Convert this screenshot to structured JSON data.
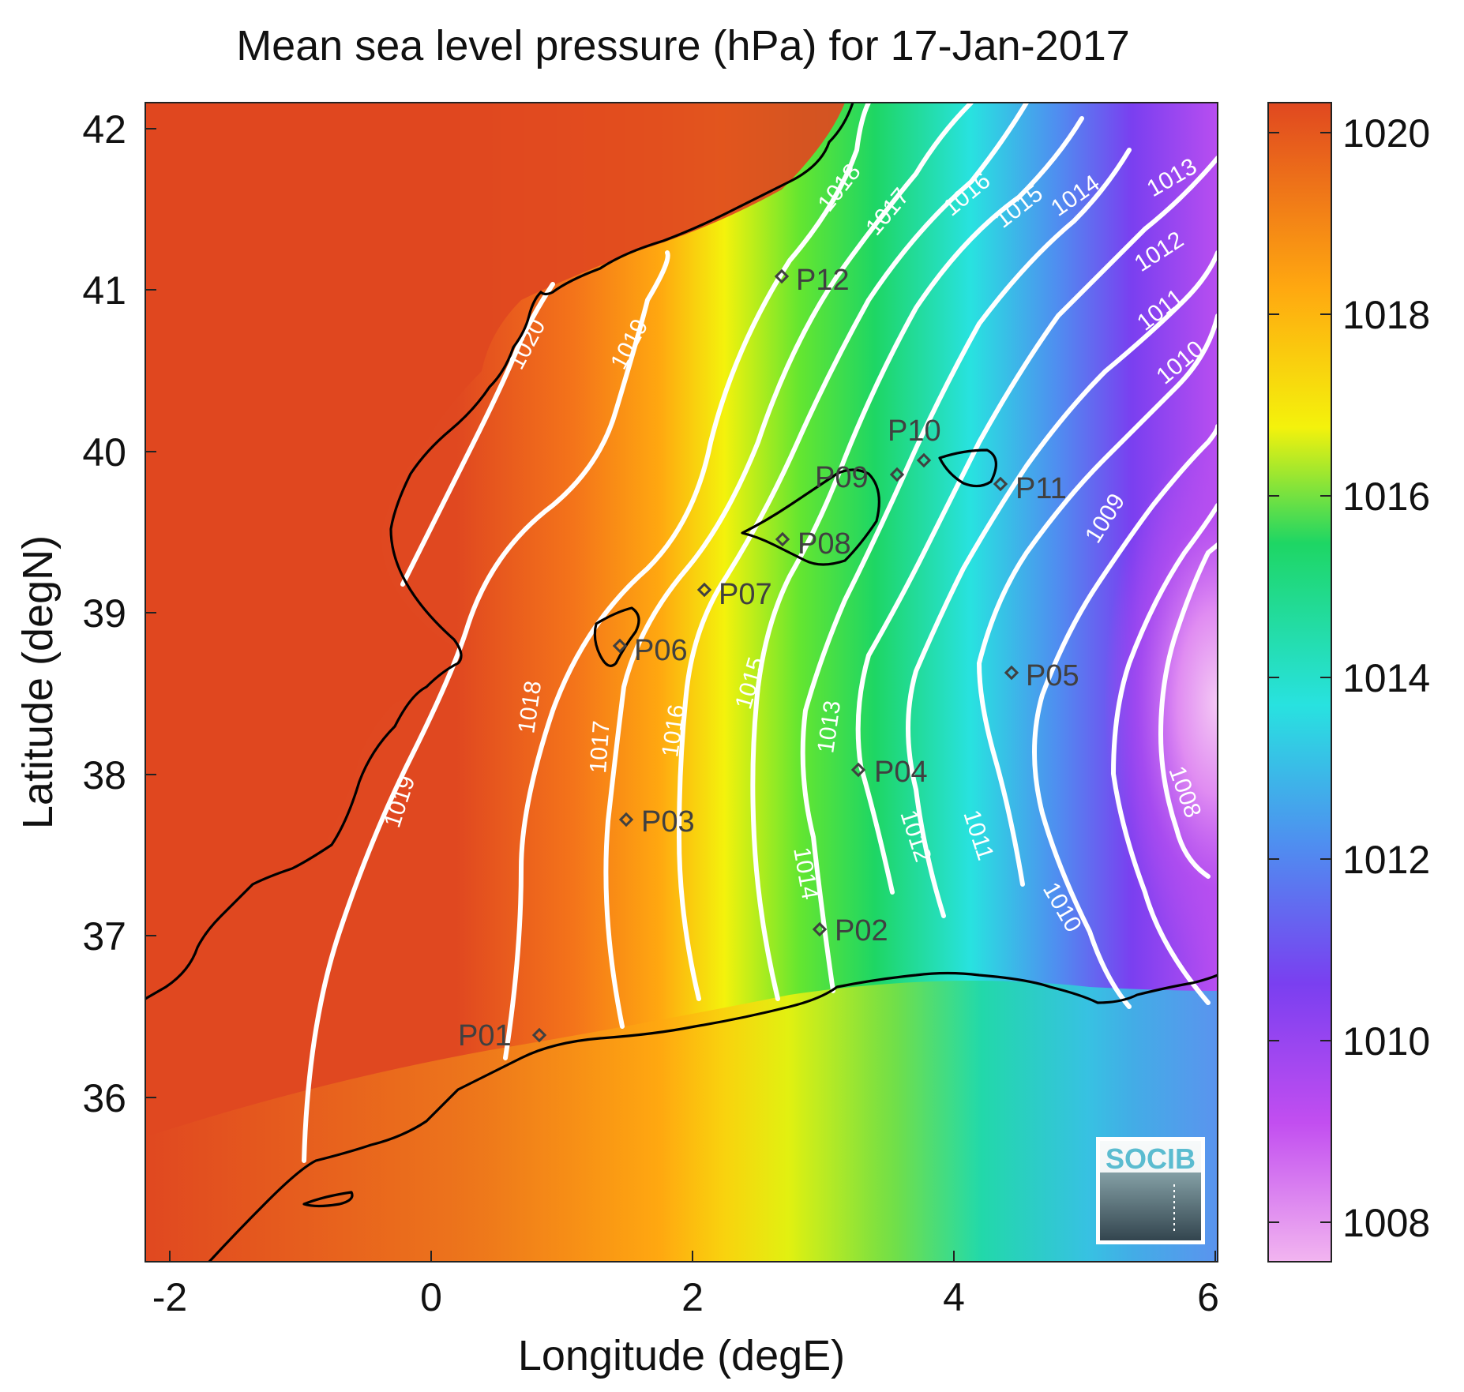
{
  "title": "Mean sea level pressure (hPa) for 17-Jan-2017",
  "xlabel": "Longitude (degE)",
  "ylabel": "Latitude (degN)",
  "x_ticks": [
    "-2",
    "0",
    "2",
    "4",
    "6"
  ],
  "y_ticks": [
    "42",
    "41",
    "40",
    "39",
    "38",
    "37",
    "36"
  ],
  "colorbar_ticks": [
    "1020",
    "1018",
    "1016",
    "1014",
    "1012",
    "1010",
    "1008"
  ],
  "logo_text": "SOCIB",
  "contour_labels": [
    "1020",
    "1019",
    "1018",
    "1017",
    "1016",
    "1015",
    "1014",
    "1013",
    "1012",
    "1011",
    "1010",
    "1009",
    "1008"
  ],
  "stations": [
    "P01",
    "P02",
    "P03",
    "P04",
    "P05",
    "P06",
    "P07",
    "P08",
    "P09",
    "P10",
    "P11",
    "P12"
  ],
  "chart_data": {
    "type": "heatmap",
    "title": "Mean sea level pressure (hPa) for 17-Jan-2017",
    "xlabel": "Longitude (degE)",
    "ylabel": "Latitude (degN)",
    "xlim": [
      -2.2,
      6
    ],
    "ylim": [
      35.1,
      42.2
    ],
    "clim": [
      1007.6,
      1020.4
    ],
    "colormap": [
      "#f2b5f0",
      "#c24ef0",
      "#7a3ff0",
      "#4f8ef0",
      "#28e2e0",
      "#1ed664",
      "#f4f20c",
      "#ffa810",
      "#e04820"
    ],
    "stations": [
      {
        "name": "P01",
        "lon": 0.85,
        "lat": 36.51
      },
      {
        "name": "P02",
        "lon": 3.0,
        "lat": 37.15
      },
      {
        "name": "P03",
        "lon": 1.5,
        "lat": 37.8
      },
      {
        "name": "P04",
        "lon": 3.3,
        "lat": 38.11
      },
      {
        "name": "P05",
        "lon": 4.5,
        "lat": 38.7
      },
      {
        "name": "P06",
        "lon": 1.45,
        "lat": 38.88
      },
      {
        "name": "P07",
        "lon": 2.1,
        "lat": 39.2
      },
      {
        "name": "P08",
        "lon": 2.7,
        "lat": 39.5
      },
      {
        "name": "P09",
        "lon": 3.6,
        "lat": 39.9
      },
      {
        "name": "P10",
        "lon": 3.8,
        "lat": 40.0
      },
      {
        "name": "P11",
        "lon": 4.4,
        "lat": 39.85
      },
      {
        "name": "P12",
        "lon": 2.7,
        "lat": 41.1
      }
    ]
  }
}
